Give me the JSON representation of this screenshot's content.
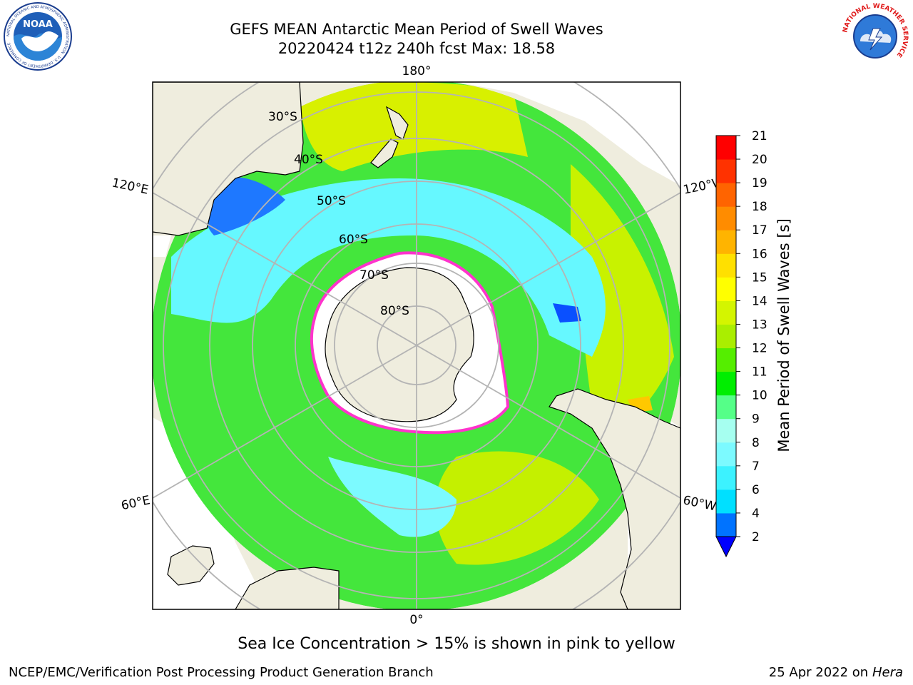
{
  "header": {
    "title_line1": "GEFS MEAN Antarctic Mean Period of Swell Waves",
    "title_line2": "20220424 t12z 240h fcst   Max: 18.58"
  },
  "logos": {
    "noaa": {
      "label": "NOAA",
      "ring_text": "NATIONAL OCEANIC AND ATMOSPHERIC ADMINISTRATION · U.S. DEPARTMENT OF COMMERCE"
    },
    "nws": {
      "ring_text": "NATIONAL WEATHER SERVICE"
    }
  },
  "map": {
    "projection": "south-polar-stereographic",
    "longitude_labels": {
      "top": "180°",
      "left_upper": "120°E",
      "right_upper": "120°W",
      "left_lower": "60°E",
      "right_lower": "60°W",
      "bottom": "0°"
    },
    "latitude_labels": [
      "30°S",
      "40°S",
      "50°S",
      "60°S",
      "70°S",
      "80°S"
    ],
    "colors": {
      "land": "#efedde",
      "ice_edge": "#ff33cc",
      "grid": "#b4b4b4"
    }
  },
  "colorbar": {
    "label": "Mean Period of Swell Waves [s]",
    "ticks": [
      "2",
      "4",
      "6",
      "7",
      "8",
      "9",
      "10",
      "11",
      "12",
      "13",
      "14",
      "15",
      "16",
      "17",
      "18",
      "19",
      "20",
      "21"
    ],
    "colors": [
      "#0000ff",
      "#0073ff",
      "#00e0ff",
      "#3cf2ff",
      "#7cfaff",
      "#a6fff0",
      "#55ff88",
      "#00ee00",
      "#55ee00",
      "#aaee00",
      "#d4f500",
      "#ffff00",
      "#ffe000",
      "#ffb400",
      "#ff8c00",
      "#ff6400",
      "#ff3200",
      "#ff0000"
    ]
  },
  "footer": {
    "note": "Sea Ice Concentration > 15% is shown in pink to yellow",
    "left": "NCEP/EMC/Verification Post Processing Product Generation Branch",
    "right_prefix": "25 Apr 2022 on ",
    "right_host": "Hera"
  }
}
